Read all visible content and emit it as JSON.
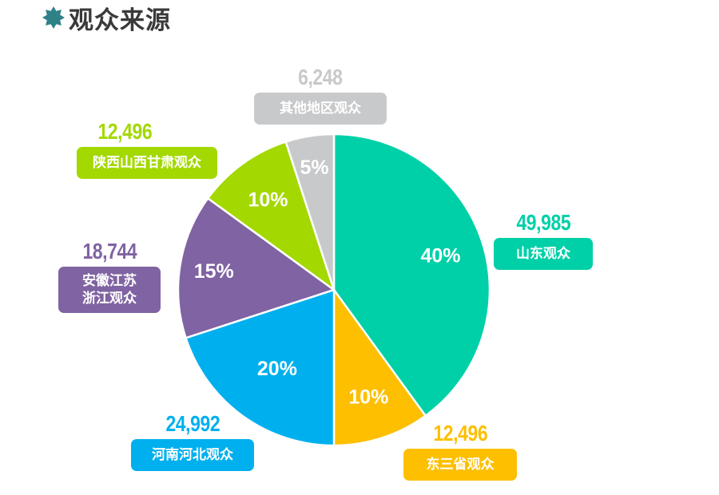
{
  "title": {
    "icon": "star-badge-icon",
    "text": "观众来源",
    "icon_color": "#2e8287"
  },
  "chart_data": {
    "type": "pie",
    "title": "观众来源",
    "start_angle_deg": 0,
    "direction": "clockwise",
    "categories": [
      "山东观众",
      "东三省观众",
      "河南河北观众",
      "安徽江苏浙江观众",
      "陕西山西甘肃观众",
      "其他地区观众"
    ],
    "values": [
      49985,
      12496,
      24992,
      18744,
      12496,
      6248
    ],
    "percent_labels": [
      "40%",
      "10%",
      "20%",
      "15%",
      "10%",
      "5%"
    ],
    "colors": [
      "#00d0a8",
      "#fdbf00",
      "#00b0ee",
      "#8063a2",
      "#a3d800",
      "#c8c9ca"
    ]
  },
  "slices": [
    {
      "label": "山东观众",
      "value": "49,985",
      "pct": "40%",
      "color": "#00d0a8"
    },
    {
      "label": "东三省观众",
      "value": "12,496",
      "pct": "10%",
      "color": "#fdbf00"
    },
    {
      "label": "河南河北观众",
      "value": "24,992",
      "pct": "20%",
      "color": "#00b0ee"
    },
    {
      "label_line1": "安徽江苏",
      "label_line2": "浙江观众",
      "value": "18,744",
      "pct": "15%",
      "color": "#8063a2"
    },
    {
      "label": "陕西山西甘肃观众",
      "value": "12,496",
      "pct": "10%",
      "color": "#a3d800"
    },
    {
      "label": "其他地区观众",
      "value": "6,248",
      "pct": "5%",
      "color": "#c8c9ca"
    }
  ]
}
